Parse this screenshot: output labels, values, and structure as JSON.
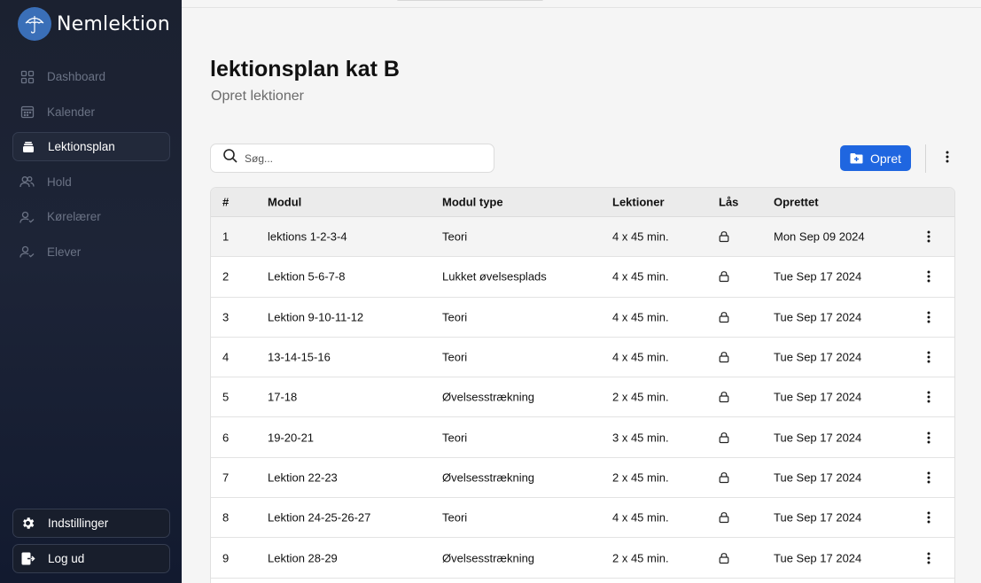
{
  "brand": {
    "name": "Nemlektion"
  },
  "nav": [
    {
      "label": "Dashboard",
      "icon": "grid-icon",
      "active": false
    },
    {
      "label": "Kalender",
      "icon": "calendar-icon",
      "active": false
    },
    {
      "label": "Lektionsplan",
      "icon": "stack-icon",
      "active": true
    },
    {
      "label": "Hold",
      "icon": "users-icon",
      "active": false
    },
    {
      "label": "Kørelærer",
      "icon": "user-check-icon",
      "active": false
    },
    {
      "label": "Elever",
      "icon": "user-check-icon",
      "active": false
    }
  ],
  "bottom_nav": [
    {
      "label": "Indstillinger",
      "icon": "gear-icon"
    },
    {
      "label": "Log ud",
      "icon": "logout-icon"
    }
  ],
  "page": {
    "title": "lektionsplan kat B",
    "subtitle": "Opret lektioner"
  },
  "search": {
    "placeholder": "Søg..."
  },
  "toolbar": {
    "create_label": "Opret"
  },
  "table": {
    "columns": [
      "#",
      "Modul",
      "Modul type",
      "Lektioner",
      "Lås",
      "Oprettet"
    ],
    "rows": [
      {
        "num": "1",
        "modul": "lektions 1-2-3-4",
        "type": "Teori",
        "lektioner": "4 x 45 min.",
        "oprettet": "Mon Sep 09 2024"
      },
      {
        "num": "2",
        "modul": "Lektion 5-6-7-8",
        "type": "Lukket øvelsesplads",
        "lektioner": "4 x 45 min.",
        "oprettet": "Tue Sep 17 2024"
      },
      {
        "num": "3",
        "modul": "Lektion 9-10-11-12",
        "type": "Teori",
        "lektioner": "4 x 45 min.",
        "oprettet": "Tue Sep 17 2024"
      },
      {
        "num": "4",
        "modul": "13-14-15-16",
        "type": "Teori",
        "lektioner": "4 x 45 min.",
        "oprettet": "Tue Sep 17 2024"
      },
      {
        "num": "5",
        "modul": "17-18",
        "type": "Øvelsesstrækning",
        "lektioner": "2 x 45 min.",
        "oprettet": "Tue Sep 17 2024"
      },
      {
        "num": "6",
        "modul": "19-20-21",
        "type": "Teori",
        "lektioner": "3 x 45 min.",
        "oprettet": "Tue Sep 17 2024"
      },
      {
        "num": "7",
        "modul": "Lektion 22-23",
        "type": "Øvelsesstrækning",
        "lektioner": "2 x 45 min.",
        "oprettet": "Tue Sep 17 2024"
      },
      {
        "num": "8",
        "modul": "Lektion 24-25-26-27",
        "type": "Teori",
        "lektioner": "4 x 45 min.",
        "oprettet": "Tue Sep 17 2024"
      },
      {
        "num": "9",
        "modul": "Lektion 28-29",
        "type": "Øvelsesstrækning",
        "lektioner": "2 x 45 min.",
        "oprettet": "Tue Sep 17 2024"
      }
    ]
  }
}
